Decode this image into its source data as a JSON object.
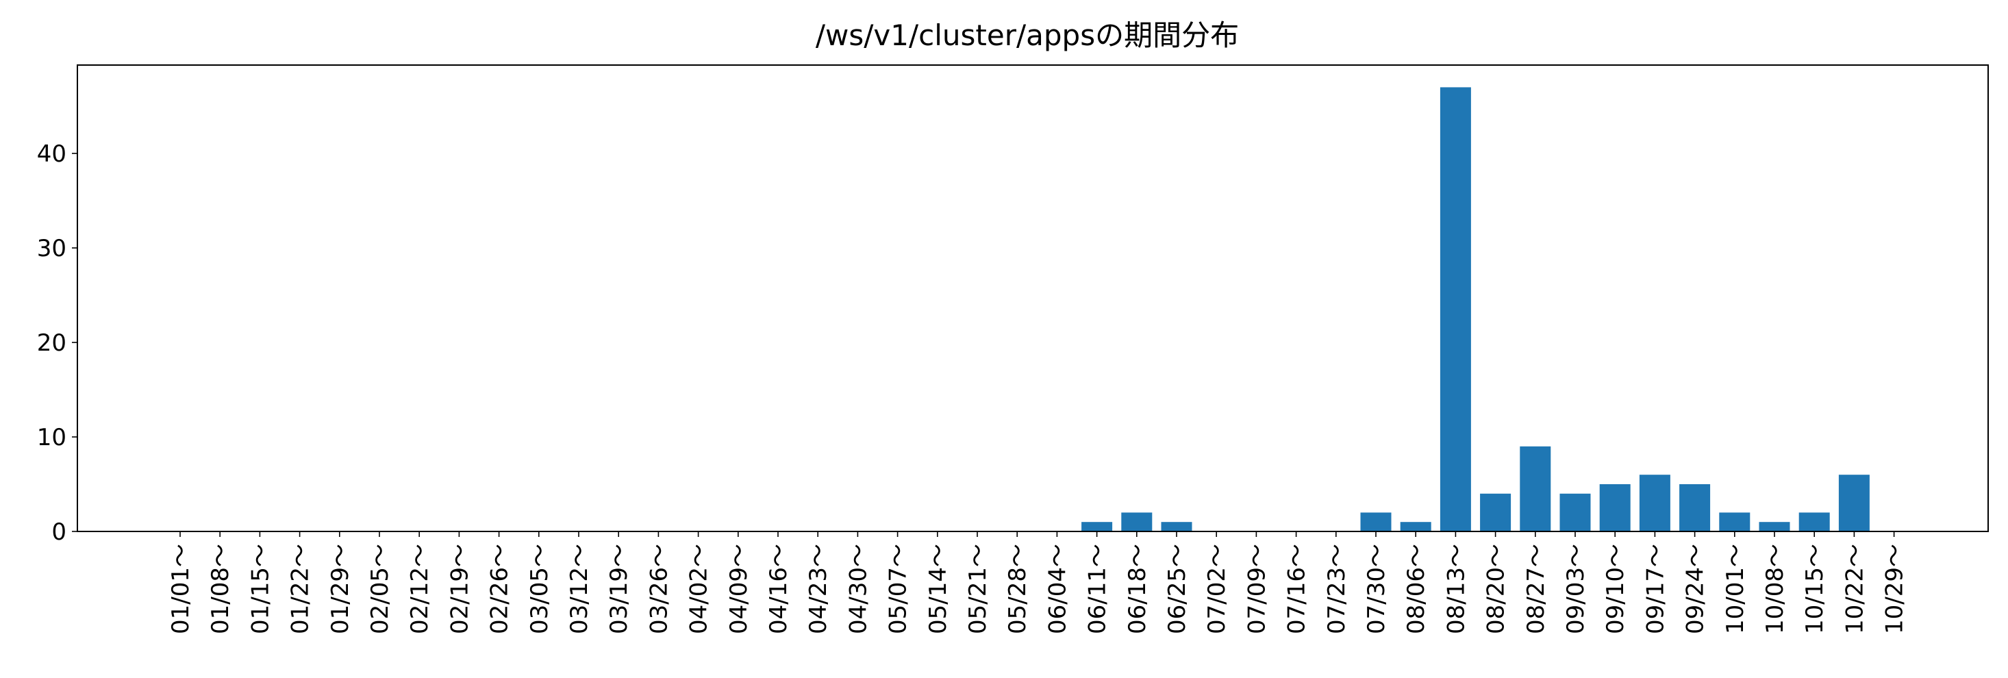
{
  "chart_data": {
    "type": "bar",
    "title": "/ws/v1/cluster/appsの期間分布",
    "xlabel": "",
    "ylabel": "",
    "categories": [
      "01/01～",
      "01/08～",
      "01/15～",
      "01/22～",
      "01/29～",
      "02/05～",
      "02/12～",
      "02/19～",
      "02/26～",
      "03/05～",
      "03/12～",
      "03/19～",
      "03/26～",
      "04/02～",
      "04/09～",
      "04/16～",
      "04/23～",
      "04/30～",
      "05/07～",
      "05/14～",
      "05/21～",
      "05/28～",
      "06/04～",
      "06/11～",
      "06/18～",
      "06/25～",
      "07/02～",
      "07/09～",
      "07/16～",
      "07/23～",
      "07/30～",
      "08/06～",
      "08/13～",
      "08/20～",
      "08/27～",
      "09/03～",
      "09/10～",
      "09/17～",
      "09/24～",
      "10/01～",
      "10/08～",
      "10/15～",
      "10/22～",
      "10/29～"
    ],
    "values": [
      0,
      0,
      0,
      0,
      0,
      0,
      0,
      0,
      0,
      0,
      0,
      0,
      0,
      0,
      0,
      0,
      0,
      0,
      0,
      0,
      0,
      0,
      0,
      1,
      2,
      1,
      0,
      0,
      0,
      0,
      2,
      1,
      47,
      4,
      9,
      4,
      5,
      6,
      5,
      2,
      1,
      2,
      6,
      0
    ],
    "yticks": [
      0,
      10,
      20,
      30,
      40
    ],
    "ylim": [
      0,
      49.35
    ],
    "bar_color": "#1f77b4",
    "grid": false,
    "legend": "none"
  }
}
